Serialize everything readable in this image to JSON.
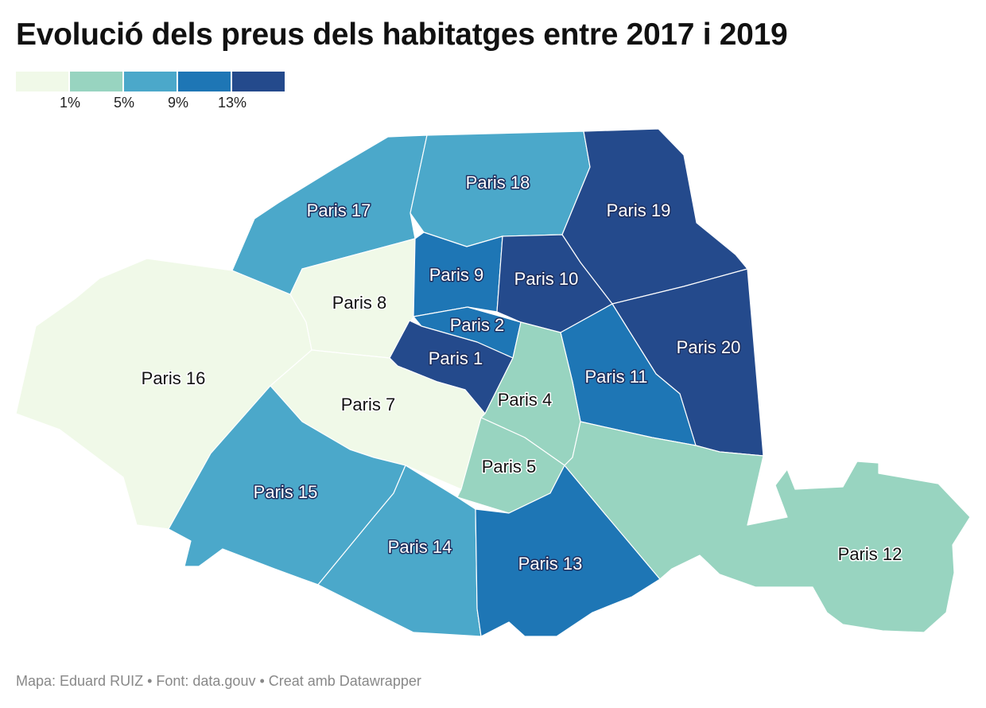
{
  "title": "Evolució dels preus dels habitatges entre 2017 i 2019",
  "legend": {
    "colors": [
      "#f0f9e8",
      "#98d4c0",
      "#4ba8ca",
      "#1e76b5",
      "#244a8c"
    ],
    "ticks": [
      "1%",
      "5%",
      "9%",
      "13%"
    ]
  },
  "palette": {
    "bin1": "#f0f9e8",
    "bin2": "#98d4c0",
    "bin3": "#4ba8ca",
    "bin4": "#1e76b5",
    "bin5": "#244a8c"
  },
  "districts": [
    {
      "id": "p1",
      "label": "Paris 1",
      "bin": 5
    },
    {
      "id": "p2",
      "label": "Paris 2",
      "bin": 4
    },
    {
      "id": "p4",
      "label": "Paris 4",
      "bin": 2
    },
    {
      "id": "p5",
      "label": "Paris 5",
      "bin": 2
    },
    {
      "id": "p7",
      "label": "Paris 7",
      "bin": 1
    },
    {
      "id": "p8",
      "label": "Paris 8",
      "bin": 1
    },
    {
      "id": "p9",
      "label": "Paris 9",
      "bin": 4
    },
    {
      "id": "p10",
      "label": "Paris 10",
      "bin": 5
    },
    {
      "id": "p11",
      "label": "Paris 11",
      "bin": 4
    },
    {
      "id": "p12",
      "label": "Paris 12",
      "bin": 2
    },
    {
      "id": "p13",
      "label": "Paris 13",
      "bin": 4
    },
    {
      "id": "p14",
      "label": "Paris 14",
      "bin": 3
    },
    {
      "id": "p15",
      "label": "Paris 15",
      "bin": 3
    },
    {
      "id": "p16",
      "label": "Paris 16",
      "bin": 1
    },
    {
      "id": "p17",
      "label": "Paris 17",
      "bin": 3
    },
    {
      "id": "p18",
      "label": "Paris 18",
      "bin": 3
    },
    {
      "id": "p19",
      "label": "Paris 19",
      "bin": 5
    },
    {
      "id": "p20",
      "label": "Paris 20",
      "bin": 5
    }
  ],
  "footer": "Mapa: Eduard RUIZ • Font: data.gouv • Creat amb Datawrapper"
}
